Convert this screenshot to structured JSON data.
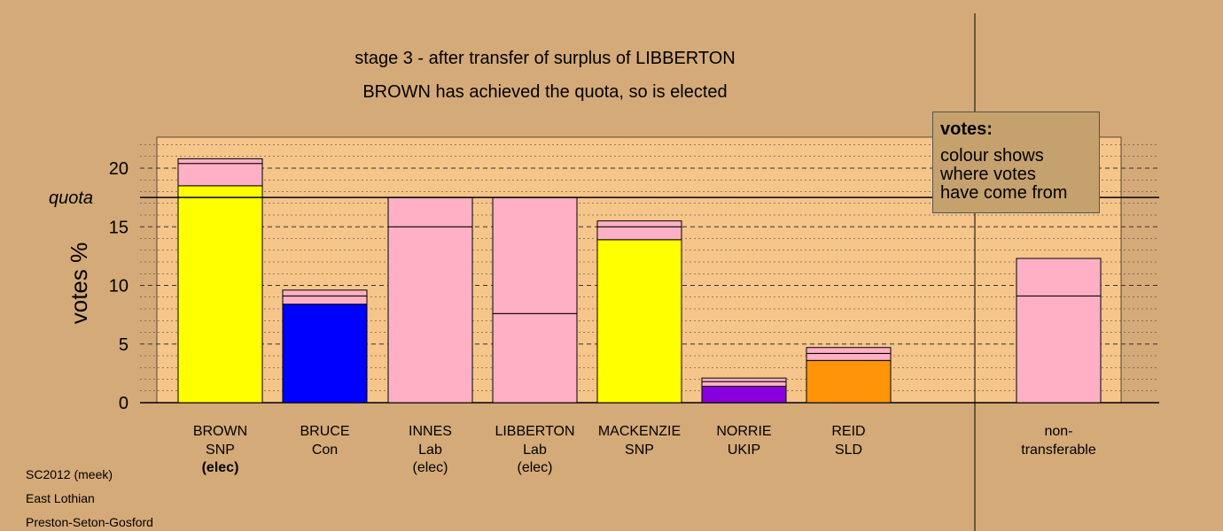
{
  "header": {
    "title": "stage 3 - after transfer of surplus of LIBBERTON",
    "subtitle": "BROWN has achieved the quota, so is elected"
  },
  "legend": {
    "title": "votes:",
    "lines": [
      "colour shows",
      "where votes",
      "have come from"
    ]
  },
  "footer": {
    "lines": [
      "SC2012 (meek)",
      "East Lothian",
      "Preston-Seton-Gosford"
    ]
  },
  "colors": {
    "background": "#d4aa78",
    "plot_area": "#f5c58a",
    "Lab": "#ffb0c4",
    "SNP": "#ffff00",
    "Con": "#0000ff",
    "UKIP": "#8800dd",
    "SLD": "#ff9408"
  },
  "chart_data": {
    "type": "bar",
    "ylabel": "votes %",
    "ylim": [
      0,
      22.5
    ],
    "yticks": [
      0,
      5,
      10,
      15,
      20
    ],
    "quota": 17.5,
    "quota_label": "quota",
    "grid": true,
    "bars": [
      {
        "name": "BROWN",
        "party": "SNP",
        "status": "(elec)",
        "status_bold": true,
        "segments": [
          {
            "value": 18.5,
            "color": "#ffff00"
          },
          {
            "value": 1.9,
            "color": "#ffb0c4"
          },
          {
            "value": 0.4,
            "color": "#ffb0c4"
          }
        ]
      },
      {
        "name": "BRUCE",
        "party": "Con",
        "status": "",
        "segments": [
          {
            "value": 8.4,
            "color": "#0000ff"
          },
          {
            "value": 0.7,
            "color": "#ffb0c4"
          },
          {
            "value": 0.5,
            "color": "#ffb0c4"
          }
        ]
      },
      {
        "name": "INNES",
        "party": "Lab",
        "status": "(elec)",
        "segments": [
          {
            "value": 15.0,
            "color": "#ffb0c4"
          },
          {
            "value": 2.5,
            "color": "#ffb0c4"
          }
        ]
      },
      {
        "name": "LIBBERTON",
        "party": "Lab",
        "status": "(elec)",
        "segments": [
          {
            "value": 7.6,
            "color": "#ffb0c4"
          },
          {
            "value": 9.9,
            "color": "#ffb0c4"
          }
        ]
      },
      {
        "name": "MACKENZIE",
        "party": "SNP",
        "status": "",
        "segments": [
          {
            "value": 13.9,
            "color": "#ffff00"
          },
          {
            "value": 1.1,
            "color": "#ffb0c4"
          },
          {
            "value": 0.5,
            "color": "#ffb0c4"
          }
        ]
      },
      {
        "name": "NORRIE",
        "party": "UKIP",
        "status": "",
        "segments": [
          {
            "value": 1.4,
            "color": "#8800dd"
          },
          {
            "value": 0.4,
            "color": "#ffb0c4"
          },
          {
            "value": 0.3,
            "color": "#ffb0c4"
          }
        ]
      },
      {
        "name": "REID",
        "party": "SLD",
        "status": "",
        "segments": [
          {
            "value": 3.6,
            "color": "#ff9408"
          },
          {
            "value": 0.6,
            "color": "#ffb0c4"
          },
          {
            "value": 0.5,
            "color": "#ffb0c4"
          }
        ]
      }
    ],
    "nontransferable": {
      "label_lines": [
        "non-",
        "transferable"
      ],
      "segments": [
        {
          "value": 9.1,
          "color": "#ffb0c4"
        },
        {
          "value": 3.2,
          "color": "#ffb0c4"
        }
      ]
    }
  }
}
